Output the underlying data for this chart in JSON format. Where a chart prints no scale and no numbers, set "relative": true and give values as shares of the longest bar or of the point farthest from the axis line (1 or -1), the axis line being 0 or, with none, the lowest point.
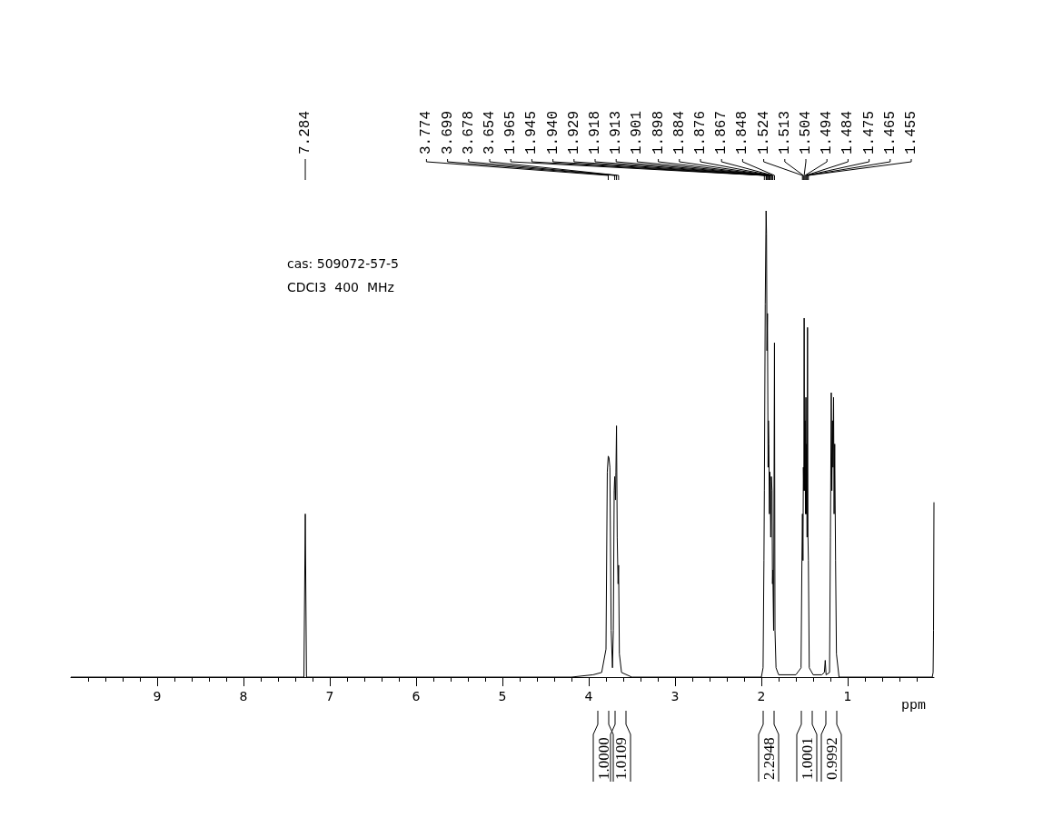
{
  "chart_data": {
    "type": "line",
    "relative": true,
    "xlabel": "ppm",
    "xlim": [
      10,
      0
    ],
    "xticks": [
      9,
      8,
      7,
      6,
      5,
      4,
      3,
      2,
      1
    ],
    "grid": false,
    "marker": "none",
    "line_style": "solid",
    "annotations": [
      "cas: 509072-57-5",
      "CDCI3  400  MHz",
      {
        "text": "7.284",
        "x": 7.284
      },
      {
        "text": "3.774",
        "x": 3.774
      },
      {
        "text": "3.699",
        "x": 3.699
      },
      {
        "text": "3.678",
        "x": 3.678
      },
      {
        "text": "3.654",
        "x": 3.654
      },
      {
        "text": "1.965",
        "x": 1.965
      },
      {
        "text": "1.945",
        "x": 1.945
      },
      {
        "text": "1.940",
        "x": 1.94
      },
      {
        "text": "1.929",
        "x": 1.929
      },
      {
        "text": "1.918",
        "x": 1.918
      },
      {
        "text": "1.913",
        "x": 1.913
      },
      {
        "text": "1.901",
        "x": 1.901
      },
      {
        "text": "1.898",
        "x": 1.898
      },
      {
        "text": "1.884",
        "x": 1.884
      },
      {
        "text": "1.876",
        "x": 1.876
      },
      {
        "text": "1.867",
        "x": 1.867
      },
      {
        "text": "1.848",
        "x": 1.848
      },
      {
        "text": "1.524",
        "x": 1.524
      },
      {
        "text": "1.513",
        "x": 1.513
      },
      {
        "text": "1.504",
        "x": 1.504
      },
      {
        "text": "1.494",
        "x": 1.494
      },
      {
        "text": "1.484",
        "x": 1.484
      },
      {
        "text": "1.475",
        "x": 1.475
      },
      {
        "text": "1.465",
        "x": 1.465
      },
      {
        "text": "1.455",
        "x": 1.455
      },
      "1.0000",
      "1.0109",
      "2.2948",
      "1.0001",
      "0.9992"
    ],
    "series": [
      {
        "color": "#000000",
        "x": [
          10,
          7.35,
          7.3,
          7.284,
          7.27,
          4.2,
          3.95,
          3.85,
          3.8,
          3.785,
          3.774,
          3.765,
          3.755,
          3.74,
          3.725,
          3.715,
          3.705,
          3.699,
          3.69,
          3.685,
          3.678,
          3.67,
          3.66,
          3.654,
          3.645,
          3.62,
          3.5,
          2.0,
          1.98,
          1.97,
          1.965,
          1.955,
          1.945,
          1.94,
          1.935,
          1.929,
          1.922,
          1.918,
          1.913,
          1.907,
          1.901,
          1.898,
          1.891,
          1.884,
          1.876,
          1.871,
          1.867,
          1.858,
          1.848,
          1.842,
          1.83,
          1.8,
          1.6,
          1.54,
          1.53,
          1.524,
          1.518,
          1.513,
          1.508,
          1.504,
          1.499,
          1.494,
          1.489,
          1.484,
          1.479,
          1.475,
          1.47,
          1.465,
          1.46,
          1.455,
          1.445,
          1.4,
          1.3,
          1.27,
          1.26,
          1.25,
          1.21,
          1.2,
          1.19,
          1.183,
          1.176,
          1.17,
          1.163,
          1.157,
          1.15,
          1.14,
          1.13,
          1.1,
          0.02,
          0.01,
          0.005,
          0
        ],
        "values": [
          0,
          0,
          0,
          0.35,
          0,
          0,
          0.005,
          0.01,
          0.06,
          0.44,
          0.474,
          0.47,
          0.45,
          0.1,
          0.02,
          0.1,
          0.4,
          0.43,
          0.38,
          0.44,
          0.539,
          0.3,
          0.2,
          0.24,
          0.05,
          0.01,
          0,
          0,
          0.02,
          0.25,
          0.4,
          0.8,
          1,
          0.95,
          0.7,
          0.78,
          0.45,
          0.55,
          0.5,
          0.35,
          0.44,
          0.42,
          0.3,
          0.43,
          0.4,
          0.2,
          0.23,
          0.1,
          0.717,
          0.1,
          0.02,
          0.005,
          0.005,
          0.02,
          0.25,
          0.35,
          0.25,
          0.45,
          0.4,
          0.77,
          0.4,
          0.55,
          0.35,
          0.6,
          0.35,
          0.5,
          0.3,
          0.75,
          0.3,
          0.25,
          0.02,
          0.005,
          0.005,
          0.01,
          0.036,
          0.005,
          0.01,
          0.3,
          0.61,
          0.4,
          0.55,
          0.45,
          0.6,
          0.35,
          0.5,
          0.25,
          0.05,
          0,
          0,
          0.01,
          0.1,
          0.375
        ]
      }
    ]
  }
}
